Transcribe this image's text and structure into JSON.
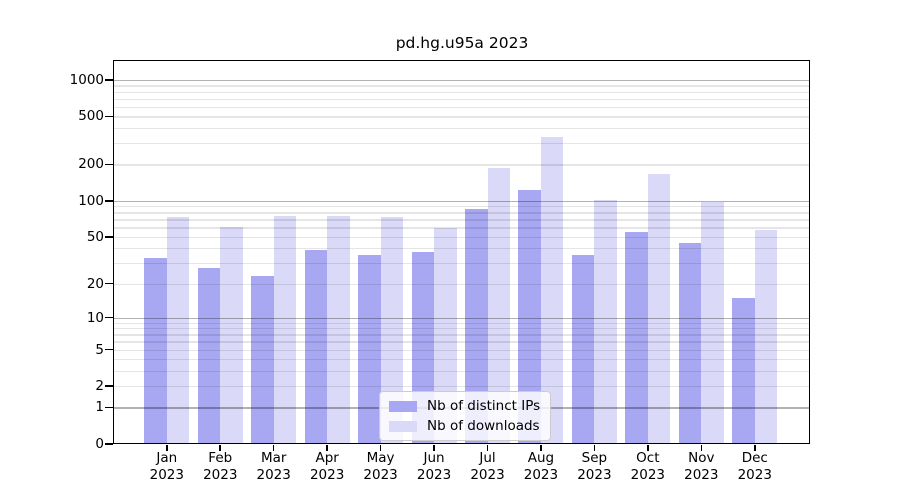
{
  "figure": {
    "title": "pd.hg.u95a 2023"
  },
  "chart_data": {
    "type": "bar",
    "title": "pd.hg.u95a 2023",
    "scale": "log1p",
    "grid": "on",
    "legend_position": "lower center",
    "categories": [
      "Jan 2023",
      "Feb 2023",
      "Mar 2023",
      "Apr 2023",
      "May 2023",
      "Jun 2023",
      "Jul 2023",
      "Aug 2023",
      "Sep 2023",
      "Oct 2023",
      "Nov 2023",
      "Dec 2023"
    ],
    "month_line1": [
      "Jan",
      "Feb",
      "Mar",
      "Apr",
      "May",
      "Jun",
      "Jul",
      "Aug",
      "Sep",
      "Oct",
      "Nov",
      "Dec"
    ],
    "month_line2": "2023",
    "series": [
      {
        "name": "Nb of distinct IPs",
        "color": "#a8a8f2",
        "values": [
          33,
          27,
          23,
          39,
          35,
          37,
          86,
          123,
          35,
          55,
          44,
          15
        ]
      },
      {
        "name": "Nb of downloads",
        "color": "#dadaf8",
        "values": [
          73,
          60,
          74,
          74,
          73,
          59,
          188,
          340,
          101,
          168,
          98,
          57
        ]
      }
    ],
    "yticks": [
      0,
      1,
      2,
      5,
      10,
      20,
      50,
      100,
      200,
      500,
      1000
    ],
    "ylim": [
      0,
      1430
    ],
    "grid_major": [
      1,
      10,
      100,
      1000
    ],
    "axis_color": "#000000",
    "grid_minor_color": "#e6e6e6",
    "grid_major_color": "#b3b3b3"
  }
}
